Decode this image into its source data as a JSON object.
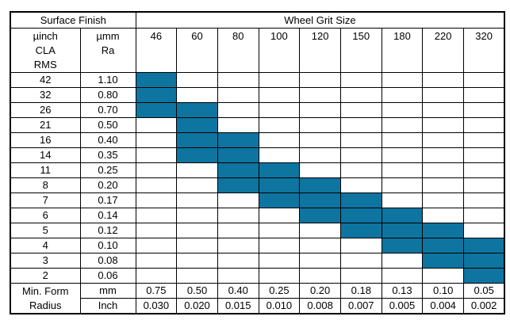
{
  "colors": {
    "highlight_fill": "#0E74A0",
    "border": "#000000",
    "background": "#FFFFFF"
  },
  "chart_data": {
    "type": "table",
    "header": {
      "surface_finish": "Surface Finish",
      "wheel_grit_size": "Wheel Grit Size",
      "uinch_lines": [
        "µinch",
        "CLA",
        "RMS"
      ],
      "umm_lines": [
        "µmm",
        "Ra"
      ],
      "grit_sizes": [
        "46",
        "60",
        "80",
        "100",
        "120",
        "150",
        "180",
        "220",
        "320"
      ]
    },
    "rows": [
      {
        "uinch": "42",
        "umm": "1.10",
        "highlighted_grits": [
          "46"
        ]
      },
      {
        "uinch": "32",
        "umm": "0.80",
        "highlighted_grits": [
          "46"
        ]
      },
      {
        "uinch": "26",
        "umm": "0.70",
        "highlighted_grits": [
          "46",
          "60"
        ]
      },
      {
        "uinch": "21",
        "umm": "0.50",
        "highlighted_grits": [
          "60"
        ]
      },
      {
        "uinch": "16",
        "umm": "0.40",
        "highlighted_grits": [
          "60",
          "80"
        ]
      },
      {
        "uinch": "14",
        "umm": "0.35",
        "highlighted_grits": [
          "60",
          "80"
        ]
      },
      {
        "uinch": "11",
        "umm": "0.25",
        "highlighted_grits": [
          "80",
          "100"
        ]
      },
      {
        "uinch": "8",
        "umm": "0.20",
        "highlighted_grits": [
          "80",
          "100",
          "120"
        ]
      },
      {
        "uinch": "7",
        "umm": "0.17",
        "highlighted_grits": [
          "100",
          "120",
          "150"
        ]
      },
      {
        "uinch": "6",
        "umm": "0.14",
        "highlighted_grits": [
          "120",
          "150",
          "180"
        ]
      },
      {
        "uinch": "5",
        "umm": "0.12",
        "highlighted_grits": [
          "150",
          "180",
          "220"
        ]
      },
      {
        "uinch": "4",
        "umm": "0.10",
        "highlighted_grits": [
          "180",
          "220",
          "320"
        ]
      },
      {
        "uinch": "3",
        "umm": "0.08",
        "highlighted_grits": [
          "220",
          "320"
        ]
      },
      {
        "uinch": "2",
        "umm": "0.06",
        "highlighted_grits": [
          "320"
        ]
      }
    ],
    "footer": {
      "label_lines": [
        "Min. Form",
        "Radius"
      ],
      "mm_label": "mm",
      "inch_label": "Inch",
      "mm_values": [
        "0.75",
        "0.50",
        "0.40",
        "0.25",
        "0.20",
        "0.18",
        "0.13",
        "0.10",
        "0.05"
      ],
      "inch_values": [
        "0.030",
        "0.020",
        "0.015",
        "0.010",
        "0.008",
        "0.007",
        "0.005",
        "0.004",
        "0.002"
      ]
    }
  }
}
